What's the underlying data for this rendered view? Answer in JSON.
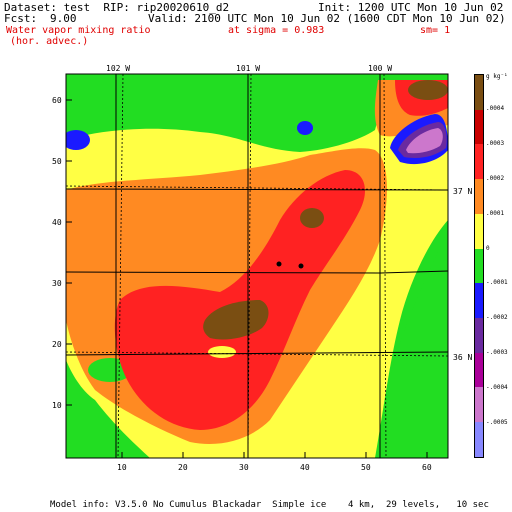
{
  "header": {
    "dataset": "Dataset: test  RIP: rip20020610_d2",
    "init": "Init: 1200 UTC Mon 10 Jun 02",
    "fcst_label": "Fcst:",
    "fcst_value": "9.00",
    "valid": "Valid: 2100 UTC Mon 10 Jun 02 (1600 CDT Mon 10 Jun 02)",
    "field_name_1": "Water vapor mixing ratio",
    "field_name_2": "(hor. advec.)",
    "level": "at sigma = 0.983",
    "sm": "sm= 1"
  },
  "map": {
    "top_lon_labels": [
      "102 W",
      "101 W",
      "100 W"
    ],
    "right_lat_labels": [
      "37 N",
      "36 N"
    ],
    "x_ticks": [
      "10",
      "20",
      "30",
      "40",
      "50",
      "60"
    ],
    "y_ticks": [
      "10",
      "20",
      "30",
      "40",
      "50",
      "60"
    ]
  },
  "legend": {
    "unit": "g kg⁻¹",
    "colors": [
      "#7a4e12",
      "#c90000",
      "#ff2222",
      "#ff8a22",
      "#ffff44",
      "#22dd22",
      "#1a1aff",
      "#6a2aa0",
      "#aa0099",
      "#cc77cc",
      "#8888ff"
    ],
    "labels": [
      ".0004",
      ".0003",
      ".0002",
      ".0001",
      "0",
      "-.0001",
      "-.0002",
      "-.0003",
      "-.0004",
      "-.0005"
    ]
  },
  "footer": "Model info: V3.5.0 No Cumulus Blackadar  Simple ice    4 km,  29 levels,   10 sec"
}
